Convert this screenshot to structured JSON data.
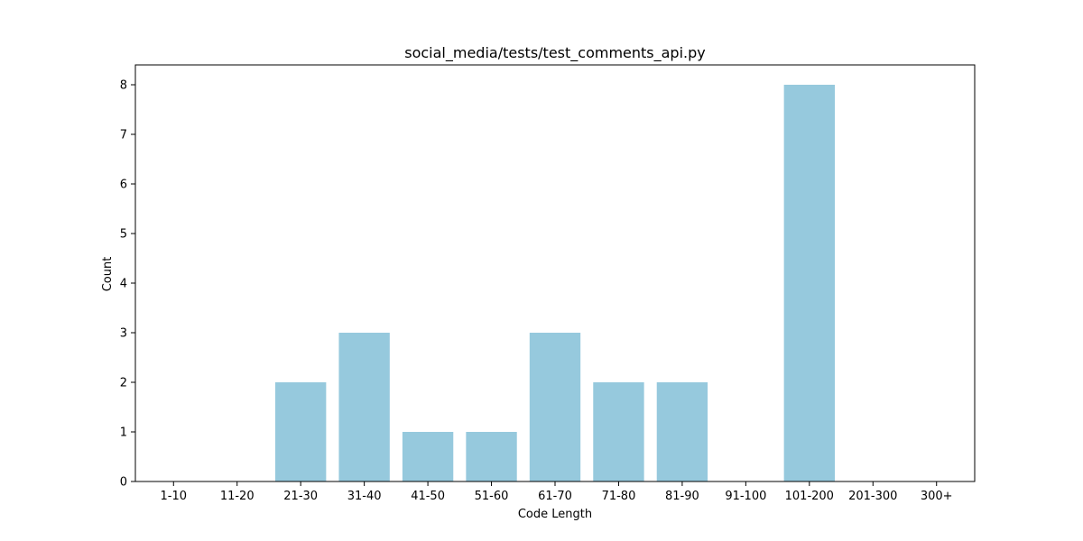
{
  "chart_data": {
    "type": "bar",
    "title": "social_media/tests/test_comments_api.py",
    "xlabel": "Code Length",
    "ylabel": "Count",
    "categories": [
      "1-10",
      "11-20",
      "21-30",
      "31-40",
      "41-50",
      "51-60",
      "61-70",
      "71-80",
      "81-90",
      "91-100",
      "101-200",
      "201-300",
      "300+"
    ],
    "values": [
      0,
      0,
      2,
      3,
      1,
      1,
      3,
      2,
      2,
      0,
      8,
      0,
      0
    ],
    "ylim": [
      0,
      8.4
    ],
    "yticks": [
      "0",
      "1",
      "2",
      "3",
      "4",
      "5",
      "6",
      "7",
      "8"
    ],
    "bar_color": "#96c9dd",
    "grid": false,
    "legend": false
  }
}
